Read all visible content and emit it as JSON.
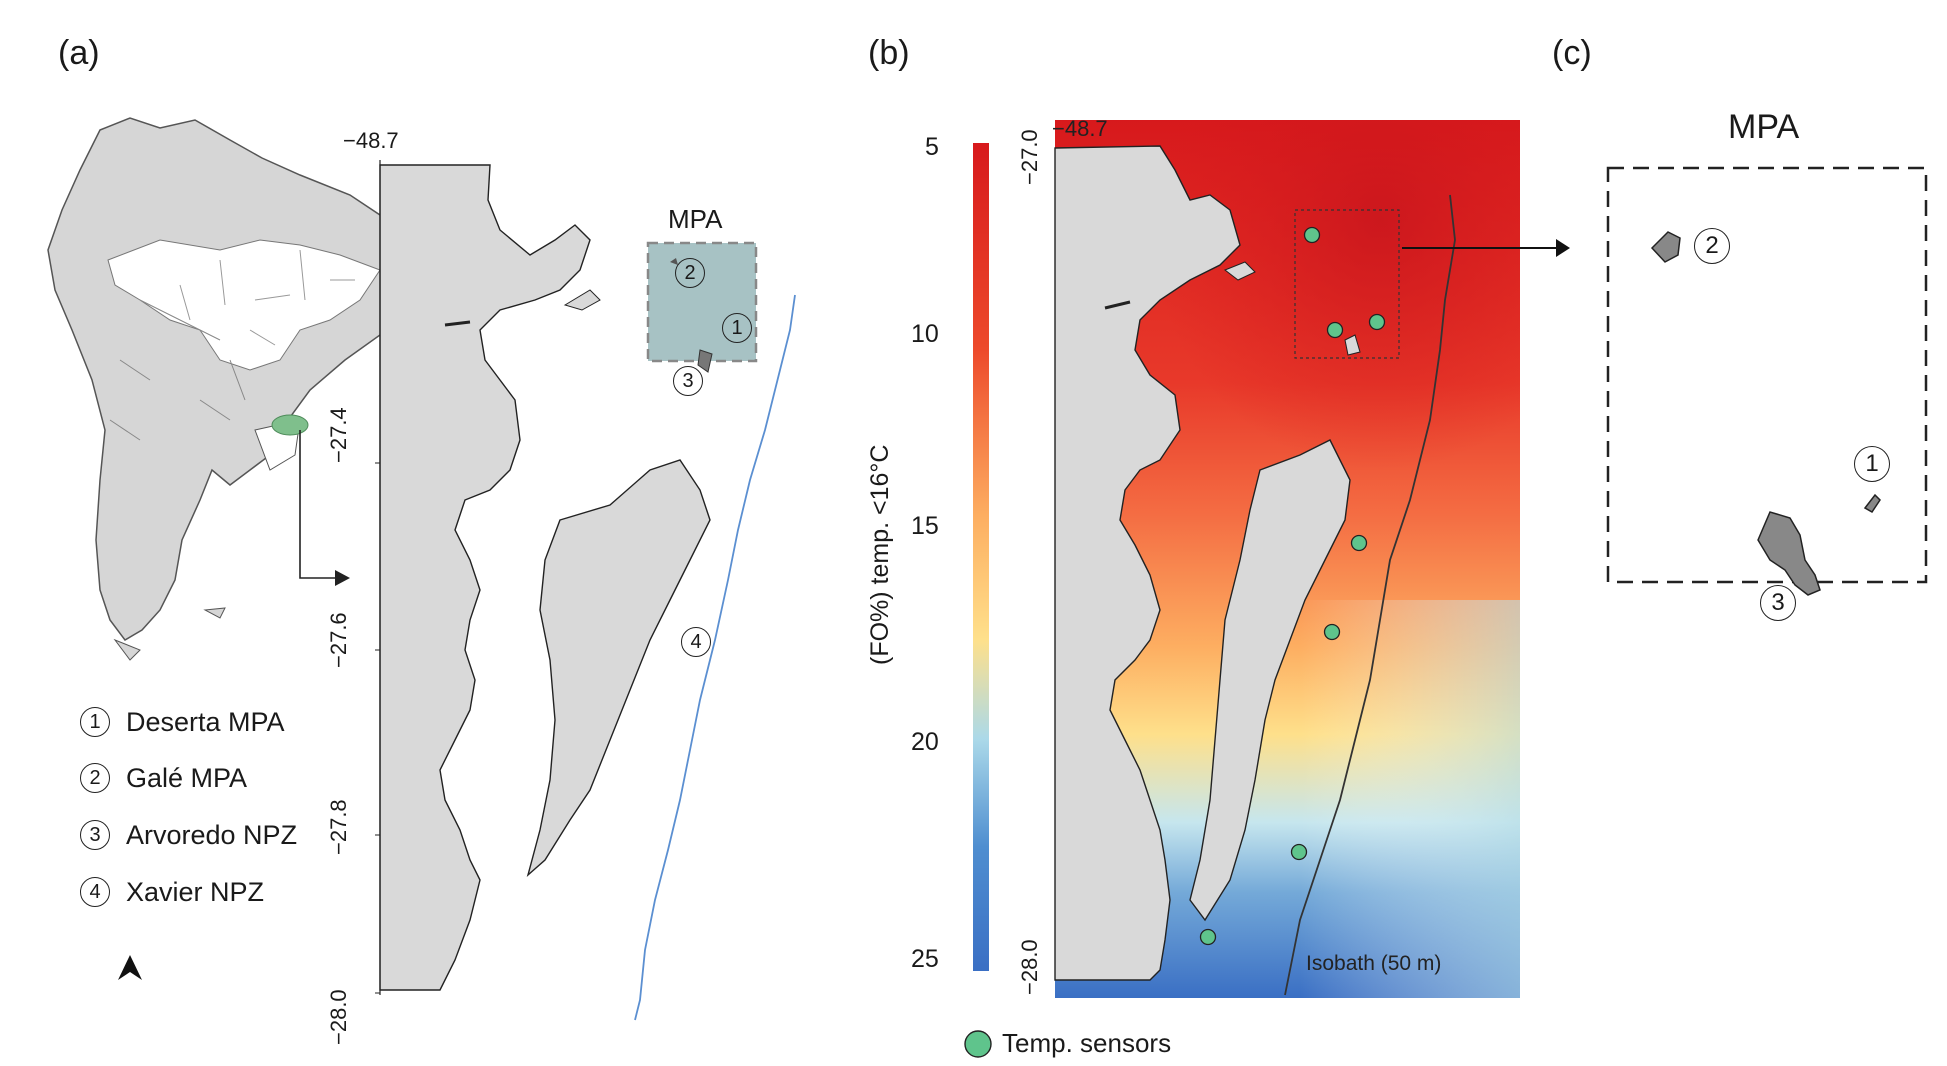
{
  "panels": {
    "a": "(a)",
    "b": "(b)",
    "c": "(c)"
  },
  "panel_a": {
    "mpa_label": "MPA",
    "lon_label": "−48.7",
    "lat_ticks": [
      "−27.4",
      "−27.6",
      "−27.8",
      "−28.0"
    ],
    "map_numbers": [
      "1",
      "2",
      "3",
      "4"
    ],
    "legend": [
      {
        "num": "1",
        "label": "Deserta MPA"
      },
      {
        "num": "2",
        "label": "Galé MPA"
      },
      {
        "num": "3",
        "label": "Arvoredo NPZ"
      },
      {
        "num": "4",
        "label": "Xavier NPZ"
      }
    ],
    "north_arrow": "north-arrow-icon",
    "highlight_color": "#7fbf8c",
    "mpa_box_color": "#a7c2c4",
    "land_color": "#d9d9d9",
    "isobath_color": "#5b8fd1"
  },
  "panel_b": {
    "colorbar_title": "(FO%) temp. <16°C",
    "colorbar_ticks": [
      "5",
      "10",
      "15",
      "20",
      "25"
    ],
    "lat_top": "−27.0",
    "lat_bottom": "−28.0",
    "lon_label": "−48.7",
    "isobath_label": "Isobath (50 m)",
    "sensor_legend": "Temp. sensors",
    "sensor_color": "#5fc48c"
  },
  "panel_c": {
    "title": "MPA",
    "numbers": [
      "1",
      "2",
      "3"
    ]
  }
}
